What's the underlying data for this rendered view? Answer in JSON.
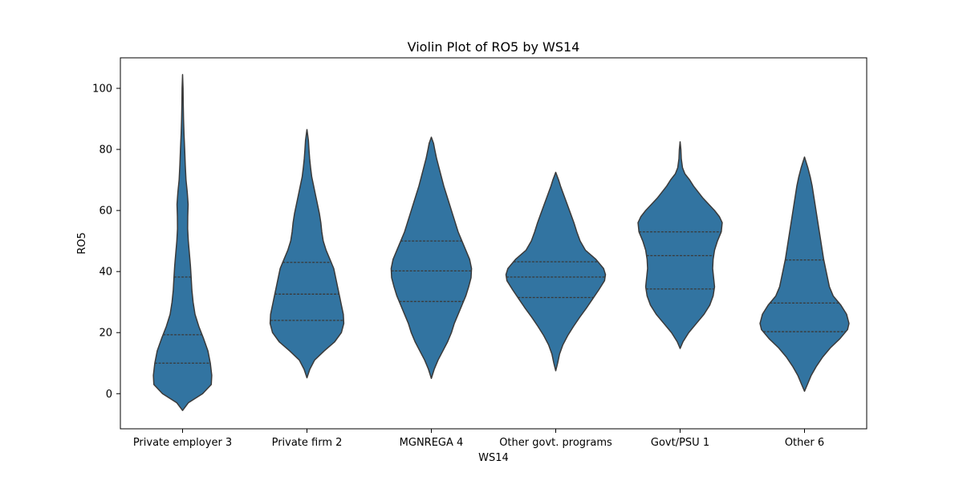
{
  "chart_data": {
    "type": "violin",
    "title": "Violin Plot of RO5 by WS14",
    "xlabel": "WS14",
    "ylabel": "RO5",
    "ylim": [
      -11.5,
      110
    ],
    "yticks": [
      0,
      20,
      40,
      60,
      80,
      100
    ],
    "grid": false,
    "legend": "none",
    "fill_color": "#3274a1",
    "edge_color": "#3a3a3a",
    "inner": "quartile",
    "categories": [
      "Private employer 3",
      "Private firm 2",
      "MGNREGA 4",
      "Other govt. programs",
      "Govt/PSU 1",
      "Other 6"
    ],
    "violins": [
      {
        "category": "Private employer 3",
        "min": -5.5,
        "max": 104.5,
        "q1": 10,
        "median": 19.3,
        "q3": 38.2,
        "profile": [
          [
            -5.5,
            0
          ],
          [
            -3,
            6
          ],
          [
            0,
            21
          ],
          [
            3,
            30
          ],
          [
            6,
            30.5
          ],
          [
            10,
            29
          ],
          [
            14,
            26.5
          ],
          [
            18,
            22
          ],
          [
            22,
            17
          ],
          [
            26,
            13
          ],
          [
            30,
            11
          ],
          [
            34,
            9.7
          ],
          [
            38,
            9
          ],
          [
            42,
            8.2
          ],
          [
            46,
            7.1
          ],
          [
            50,
            6
          ],
          [
            54,
            5.3
          ],
          [
            58,
            5.4
          ],
          [
            62,
            5.8
          ],
          [
            66,
            4.9
          ],
          [
            70,
            3.6
          ],
          [
            75,
            2.8
          ],
          [
            80,
            2.2
          ],
          [
            85,
            1.5
          ],
          [
            90,
            1
          ],
          [
            95,
            0.7
          ],
          [
            100,
            0.5
          ],
          [
            104.5,
            0
          ]
        ]
      },
      {
        "category": "Private firm 2",
        "min": 5.2,
        "max": 86.5,
        "q1": 24,
        "median": 32.6,
        "q3": 43,
        "profile": [
          [
            5.2,
            0
          ],
          [
            8,
            3
          ],
          [
            11,
            8
          ],
          [
            14,
            18
          ],
          [
            17,
            29
          ],
          [
            20,
            36
          ],
          [
            23,
            38.5
          ],
          [
            26,
            38
          ],
          [
            29,
            36
          ],
          [
            32,
            34
          ],
          [
            35,
            32
          ],
          [
            38,
            30
          ],
          [
            41,
            28
          ],
          [
            44,
            24
          ],
          [
            47,
            20
          ],
          [
            50,
            17
          ],
          [
            53,
            15.5
          ],
          [
            56,
            14.5
          ],
          [
            59,
            13
          ],
          [
            62,
            11
          ],
          [
            65,
            9
          ],
          [
            68,
            7
          ],
          [
            71,
            5
          ],
          [
            74,
            3.8
          ],
          [
            77,
            2.8
          ],
          [
            80,
            2.1
          ],
          [
            83,
            1.5
          ],
          [
            86.5,
            0
          ]
        ]
      },
      {
        "category": "MGNREGA 4",
        "min": 5,
        "max": 84,
        "q1": 30.2,
        "median": 40.2,
        "q3": 50,
        "profile": [
          [
            5,
            0
          ],
          [
            8,
            3
          ],
          [
            11,
            7
          ],
          [
            14,
            12
          ],
          [
            17,
            17
          ],
          [
            20,
            21
          ],
          [
            23,
            24
          ],
          [
            26,
            28
          ],
          [
            29,
            32
          ],
          [
            32,
            36
          ],
          [
            35,
            39
          ],
          [
            38,
            41.5
          ],
          [
            41,
            42
          ],
          [
            44,
            40
          ],
          [
            47,
            36
          ],
          [
            50,
            32
          ],
          [
            53,
            28
          ],
          [
            56,
            25
          ],
          [
            59,
            22
          ],
          [
            62,
            19
          ],
          [
            65,
            16
          ],
          [
            68,
            13
          ],
          [
            71,
            10.5
          ],
          [
            74,
            8
          ],
          [
            77,
            5.5
          ],
          [
            80,
            3.5
          ],
          [
            82,
            2.3
          ],
          [
            84,
            0
          ]
        ]
      },
      {
        "category": "Other govt. programs",
        "min": 7.5,
        "max": 72.5,
        "q1": 31.5,
        "median": 38.2,
        "q3": 43.2,
        "profile": [
          [
            7.5,
            0
          ],
          [
            10,
            2
          ],
          [
            13,
            4
          ],
          [
            16,
            7.5
          ],
          [
            19,
            12.5
          ],
          [
            22,
            18.5
          ],
          [
            25,
            25
          ],
          [
            28,
            32
          ],
          [
            31,
            38.5
          ],
          [
            34,
            45
          ],
          [
            37,
            51
          ],
          [
            39,
            52
          ],
          [
            41,
            50
          ],
          [
            44,
            42
          ],
          [
            47,
            31
          ],
          [
            50,
            25.5
          ],
          [
            53,
            22
          ],
          [
            56,
            19
          ],
          [
            59,
            15.5
          ],
          [
            62,
            12
          ],
          [
            65,
            8.5
          ],
          [
            68,
            5
          ],
          [
            70,
            3
          ],
          [
            72.5,
            0
          ]
        ]
      },
      {
        "category": "Govt/PSU 1",
        "min": 14.8,
        "max": 82.5,
        "q1": 34.3,
        "median": 45.2,
        "q3": 53,
        "profile": [
          [
            14.8,
            0
          ],
          [
            17,
            3
          ],
          [
            20,
            9
          ],
          [
            23,
            17
          ],
          [
            26,
            25
          ],
          [
            29,
            31
          ],
          [
            32,
            34.5
          ],
          [
            35,
            36
          ],
          [
            38,
            35
          ],
          [
            41,
            34
          ],
          [
            44,
            34.5
          ],
          [
            47,
            36
          ],
          [
            50,
            39
          ],
          [
            53,
            43
          ],
          [
            56,
            44
          ],
          [
            58,
            41
          ],
          [
            60,
            36
          ],
          [
            62,
            30
          ],
          [
            64,
            24
          ],
          [
            66,
            19
          ],
          [
            68,
            14
          ],
          [
            70,
            10
          ],
          [
            72,
            5
          ],
          [
            74,
            2.5
          ],
          [
            77,
            1.2
          ],
          [
            80,
            0.8
          ],
          [
            82.5,
            0
          ]
        ]
      },
      {
        "category": "Other 6",
        "min": 0.8,
        "max": 77.5,
        "q1": 20.3,
        "median": 29.7,
        "q3": 43.8,
        "profile": [
          [
            0.8,
            0
          ],
          [
            3,
            3
          ],
          [
            6,
            7
          ],
          [
            9,
            12.5
          ],
          [
            12,
            19
          ],
          [
            15,
            27
          ],
          [
            18,
            37
          ],
          [
            21,
            45
          ],
          [
            23,
            46.5
          ],
          [
            26,
            44
          ],
          [
            29,
            38
          ],
          [
            32,
            30
          ],
          [
            35,
            26
          ],
          [
            38,
            24
          ],
          [
            41,
            22
          ],
          [
            44,
            20
          ],
          [
            47,
            18.5
          ],
          [
            50,
            17
          ],
          [
            53,
            15.5
          ],
          [
            56,
            14
          ],
          [
            59,
            12.5
          ],
          [
            62,
            11
          ],
          [
            65,
            9.5
          ],
          [
            68,
            8
          ],
          [
            71,
            6
          ],
          [
            74,
            3.5
          ],
          [
            77.5,
            0
          ]
        ]
      }
    ]
  }
}
